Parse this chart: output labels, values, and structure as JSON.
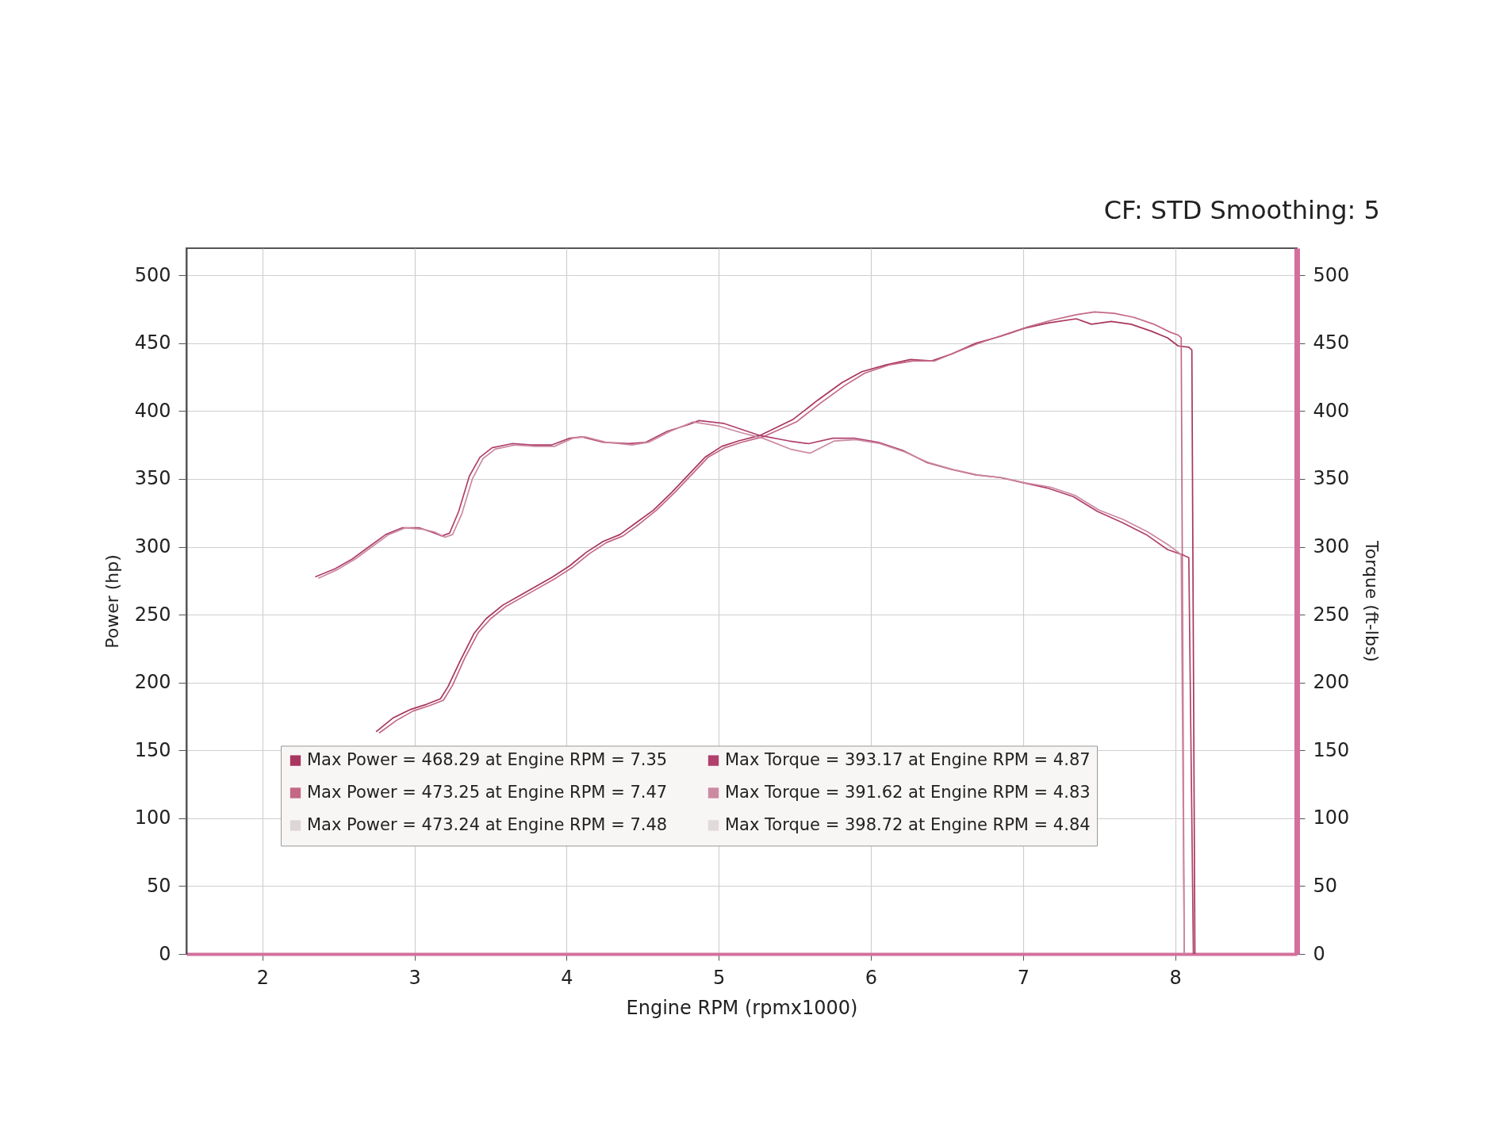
{
  "chart_data": {
    "type": "line",
    "annotations": [
      "CF: STD Smoothing: 5"
    ],
    "xlabel": "Engine RPM (rpmx1000)",
    "ylabel": "Power (hp)",
    "y2label": "Torque (ft-lbs)",
    "xlim": [
      1.5,
      8.8
    ],
    "xticks": [
      2,
      3,
      4,
      5,
      6,
      7,
      8
    ],
    "ylim": [
      0,
      520
    ],
    "yticks": [
      0,
      50,
      100,
      150,
      200,
      250,
      300,
      350,
      400,
      450,
      500
    ],
    "y2lim": [
      0,
      520
    ],
    "y2ticks": [
      0,
      50,
      100,
      150,
      200,
      250,
      300,
      350,
      400,
      450,
      500
    ],
    "grid": true,
    "legend": "bottom",
    "line_style": "solid",
    "series": [
      {
        "name": "Max Power = 468.29 at Engine RPM = 7.35",
        "color": "#a8365f",
        "x": [
          2.75,
          2.86,
          2.97,
          3.08,
          3.17,
          3.22,
          3.3,
          3.39,
          3.47,
          3.58,
          3.69,
          3.8,
          3.91,
          4.02,
          4.13,
          4.24,
          4.35,
          4.46,
          4.57,
          4.69,
          4.8,
          4.91,
          5.02,
          5.13,
          5.27,
          5.49,
          5.65,
          5.81,
          5.94,
          6.1,
          6.26,
          6.4,
          6.53,
          6.69,
          6.85,
          7.01,
          7.17,
          7.35,
          7.45,
          7.58,
          7.71,
          7.84,
          7.95,
          8.02,
          8.09,
          8.11,
          8.13
        ],
        "values": [
          164,
          174,
          180,
          184,
          188,
          197,
          216,
          236,
          247,
          257,
          264,
          271,
          278,
          286,
          296,
          304,
          309,
          318,
          327,
          340,
          353,
          366,
          374,
          378,
          382,
          394,
          408,
          421,
          429,
          434,
          438,
          437,
          442,
          450,
          455,
          461,
          465,
          468,
          464,
          466,
          464,
          459,
          454,
          448,
          447,
          445,
          0
        ]
      },
      {
        "name": "Max Power = 473.25 at Engine RPM = 7.47",
        "color": "#c46886",
        "x": [
          2.77,
          2.88,
          2.99,
          3.1,
          3.19,
          3.25,
          3.33,
          3.42,
          3.5,
          3.6,
          3.71,
          3.82,
          3.93,
          4.04,
          4.15,
          4.26,
          4.37,
          4.48,
          4.59,
          4.71,
          4.82,
          4.93,
          5.04,
          5.15,
          5.29,
          5.51,
          5.67,
          5.83,
          5.96,
          6.12,
          6.28,
          6.42,
          6.55,
          6.71,
          6.87,
          7.03,
          7.19,
          7.35,
          7.47,
          7.6,
          7.73,
          7.86,
          7.97,
          8.02,
          8.04,
          8.06
        ],
        "values": [
          163,
          172,
          179,
          183,
          187,
          198,
          218,
          237,
          247,
          256,
          263,
          270,
          277,
          285,
          295,
          303,
          308,
          317,
          327,
          340,
          353,
          366,
          373,
          377,
          381,
          392,
          406,
          419,
          428,
          434,
          437,
          437,
          443,
          450,
          456,
          462,
          467,
          471,
          473,
          472,
          469,
          464,
          458,
          456,
          454,
          0
        ]
      },
      {
        "name": "Max Power = 473.24 at Engine RPM = 7.48",
        "color": "#ddd6d6"
      },
      {
        "name": "Max Torque = 393.17 at Engine RPM = 4.87",
        "color": "#b0406c",
        "axis": "y2",
        "x": [
          2.35,
          2.48,
          2.59,
          2.7,
          2.81,
          2.92,
          3.03,
          3.11,
          3.18,
          3.23,
          3.29,
          3.36,
          3.43,
          3.51,
          3.64,
          3.77,
          3.9,
          4.02,
          4.1,
          4.24,
          4.41,
          4.52,
          4.66,
          4.8,
          4.87,
          5.03,
          5.27,
          5.46,
          5.59,
          5.75,
          5.89,
          6.05,
          6.21,
          6.37,
          6.53,
          6.69,
          6.85,
          7.01,
          7.17,
          7.33,
          7.49,
          7.65,
          7.81,
          7.95,
          8.05,
          8.09,
          8.12
        ],
        "values": [
          278,
          284,
          291,
          300,
          309,
          314,
          314,
          311,
          308,
          310,
          326,
          352,
          366,
          373,
          376,
          375,
          375,
          380,
          381,
          377,
          376,
          377,
          385,
          390,
          393,
          391,
          382,
          378,
          376,
          380,
          380,
          377,
          371,
          362,
          357,
          353,
          351,
          347,
          343,
          337,
          326,
          318,
          309,
          298,
          294,
          292,
          0
        ]
      },
      {
        "name": "Max Torque = 391.62 at Engine RPM = 4.83",
        "color": "#cc8aa2",
        "axis": "y2",
        "x": [
          2.37,
          2.49,
          2.61,
          2.72,
          2.83,
          2.94,
          3.05,
          3.13,
          3.2,
          3.25,
          3.31,
          3.38,
          3.45,
          3.53,
          3.66,
          3.79,
          3.92,
          4.04,
          4.12,
          4.26,
          4.43,
          4.54,
          4.68,
          4.83,
          5.0,
          5.15,
          5.29,
          5.47,
          5.6,
          5.76,
          5.9,
          6.06,
          6.22,
          6.38,
          6.54,
          6.7,
          6.86,
          7.02,
          7.18,
          7.34,
          7.5,
          7.66,
          7.82,
          7.96,
          8.02,
          8.04,
          8.06
        ],
        "values": [
          277,
          283,
          291,
          300,
          309,
          314,
          313,
          311,
          307,
          309,
          324,
          350,
          365,
          372,
          375,
          374,
          374,
          380,
          381,
          377,
          375,
          377,
          385,
          392,
          389,
          384,
          380,
          372,
          369,
          378,
          379,
          376,
          370,
          362,
          357,
          353,
          351,
          347,
          344,
          338,
          327,
          320,
          311,
          301,
          296,
          294,
          0
        ]
      },
      {
        "name": "Max Torque = 398.72 at Engine RPM = 4.84",
        "color": "#e0dada",
        "axis": "y2"
      }
    ]
  }
}
